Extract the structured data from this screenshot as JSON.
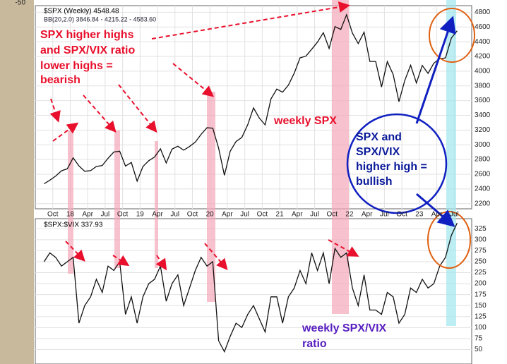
{
  "chart_data": [
    {
      "type": "line",
      "title": "$SPX (Weekly) 4548.48",
      "subtitle": "BB(20,2.0) 3846.84 - 4215.22 - 4583.60",
      "corner_label": "-50",
      "x": [
        "2017-08",
        "2017-09",
        "2017-10",
        "2017-11",
        "2017-12",
        "2018-01",
        "2018-02",
        "2018-03",
        "2018-04",
        "2018-05",
        "2018-06",
        "2018-07",
        "2018-08",
        "2018-09",
        "2018-10",
        "2018-11",
        "2018-12",
        "2019-01",
        "2019-02",
        "2019-03",
        "2019-04",
        "2019-05",
        "2019-06",
        "2019-07",
        "2019-08",
        "2019-09",
        "2019-10",
        "2019-11",
        "2019-12",
        "2020-01",
        "2020-02",
        "2020-03",
        "2020-04",
        "2020-05",
        "2020-06",
        "2020-07",
        "2020-08",
        "2020-09",
        "2020-10",
        "2020-11",
        "2020-12",
        "2021-01",
        "2021-02",
        "2021-03",
        "2021-04",
        "2021-05",
        "2021-06",
        "2021-07",
        "2021-08",
        "2021-09",
        "2021-10",
        "2021-11",
        "2021-12",
        "2022-01",
        "2022-02",
        "2022-03",
        "2022-04",
        "2022-05",
        "2022-06",
        "2022-07",
        "2022-08",
        "2022-09",
        "2022-10",
        "2022-11",
        "2022-12",
        "2023-01",
        "2023-02",
        "2023-03",
        "2023-04",
        "2023-05",
        "2023-06",
        "2023-07"
      ],
      "series": [
        {
          "name": "$SPX",
          "color": "#111111",
          "values": [
            2470,
            2519,
            2575,
            2647,
            2673,
            2823,
            2713,
            2640,
            2648,
            2705,
            2718,
            2816,
            2901,
            2913,
            2711,
            2760,
            2506,
            2704,
            2784,
            2834,
            2945,
            2752,
            2941,
            2980,
            2926,
            2976,
            3037,
            3141,
            3231,
            3225,
            2954,
            2585,
            2912,
            3044,
            3100,
            3271,
            3500,
            3363,
            3270,
            3622,
            3756,
            3714,
            3811,
            3973,
            4181,
            4204,
            4298,
            4395,
            4523,
            4308,
            4605,
            4567,
            4766,
            4516,
            4374,
            4530,
            4132,
            4132,
            3785,
            4130,
            3955,
            3586,
            3872,
            4080,
            3840,
            4077,
            3970,
            4109,
            4169,
            4180,
            4450,
            4548
          ]
        }
      ],
      "xlim": [
        "2017-07",
        "2023-10"
      ],
      "xticks": [
        {
          "value": "2017-10",
          "label": "Oct"
        },
        {
          "value": "2018-01",
          "label": "18"
        },
        {
          "value": "2018-04",
          "label": "Apr"
        },
        {
          "value": "2018-07",
          "label": "Jul"
        },
        {
          "value": "2018-10",
          "label": "Oct"
        },
        {
          "value": "2019-01",
          "label": "19"
        },
        {
          "value": "2019-04",
          "label": "Apr"
        },
        {
          "value": "2019-07",
          "label": "Jul"
        },
        {
          "value": "2019-10",
          "label": "Oct"
        },
        {
          "value": "2020-01",
          "label": "20"
        },
        {
          "value": "2020-04",
          "label": "Apr"
        },
        {
          "value": "2020-07",
          "label": "Jul"
        },
        {
          "value": "2020-10",
          "label": "Oct"
        },
        {
          "value": "2021-01",
          "label": "21"
        },
        {
          "value": "2021-04",
          "label": "Apr"
        },
        {
          "value": "2021-07",
          "label": "Jul"
        },
        {
          "value": "2021-10",
          "label": "Oct"
        },
        {
          "value": "2022-01",
          "label": "22"
        },
        {
          "value": "2022-04",
          "label": "Apr"
        },
        {
          "value": "2022-07",
          "label": "Jul"
        },
        {
          "value": "2022-10",
          "label": "Oct"
        },
        {
          "value": "2023-01",
          "label": "23"
        },
        {
          "value": "2023-04",
          "label": "Apr"
        },
        {
          "value": "2023-07",
          "label": "Jul"
        }
      ],
      "ylim": [
        2130,
        4890
      ],
      "yticks": [
        2200,
        2400,
        2600,
        2800,
        3000,
        3200,
        3400,
        3600,
        3800,
        4000,
        4200,
        4400,
        4600,
        4800
      ],
      "grid": true,
      "annotations": [
        [
          "SPX higher highs",
          "and SPX/VIX ratio",
          "lower highs =",
          "bearish"
        ],
        [
          "weekly SPX"
        ],
        [
          "SPX and",
          "SPX/VIX",
          "higher high =",
          "bullish"
        ]
      ]
    },
    {
      "type": "line",
      "title": "$SPX:$VIX 337.93",
      "series": [
        {
          "name": "$SPX:$VIX",
          "color": "#111111",
          "values": [
            250,
            270,
            260,
            240,
            250,
            260,
            110,
            150,
            170,
            210,
            180,
            240,
            230,
            250,
            130,
            170,
            110,
            170,
            200,
            210,
            240,
            160,
            200,
            220,
            150,
            190,
            230,
            260,
            240,
            250,
            70,
            45,
            80,
            110,
            100,
            130,
            150,
            120,
            90,
            170,
            170,
            110,
            170,
            190,
            230,
            200,
            270,
            230,
            270,
            200,
            280,
            260,
            270,
            190,
            150,
            220,
            140,
            140,
            130,
            180,
            170,
            110,
            130,
            190,
            180,
            210,
            190,
            200,
            240,
            260,
            310,
            338
          ]
        }
      ],
      "ylim": [
        17,
        348
      ],
      "yticks": [
        50,
        75,
        100,
        125,
        150,
        175,
        200,
        225,
        250,
        275,
        300,
        325
      ],
      "grid": true,
      "annotations": [
        [
          "weekly SPX/VIX",
          "ratio"
        ]
      ]
    }
  ]
}
